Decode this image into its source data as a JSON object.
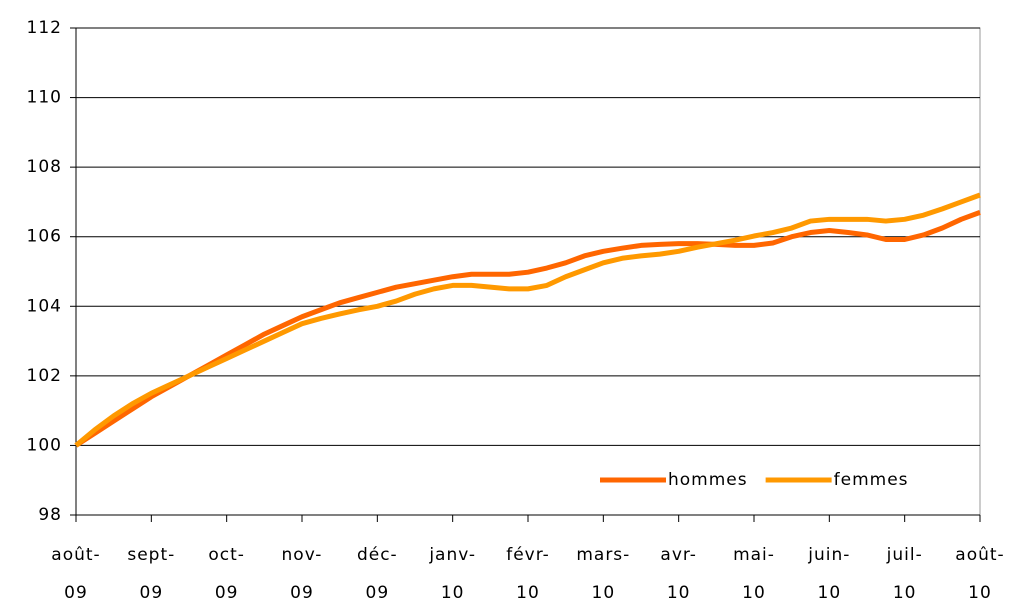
{
  "chart_data": {
    "type": "line",
    "categories": [
      "août-\n09",
      null,
      null,
      null,
      "sept-\n09",
      null,
      null,
      null,
      "oct-\n09",
      null,
      null,
      null,
      "nov-\n09",
      null,
      null,
      null,
      "déc-\n09",
      null,
      null,
      null,
      "janv-\n10",
      null,
      null,
      null,
      "févr-\n10",
      null,
      null,
      null,
      "mars-\n10",
      null,
      null,
      null,
      "avr-\n10",
      null,
      null,
      null,
      "mai-\n10",
      null,
      null,
      null,
      "juin-\n10",
      null,
      null,
      null,
      "juil-\n10",
      null,
      null,
      null,
      "août-\n10"
    ],
    "series": [
      {
        "name": "hommes",
        "color": "#ff6600",
        "values": [
          100,
          100.35,
          100.7,
          101.05,
          101.4,
          101.7,
          102.0,
          102.3,
          102.6,
          102.9,
          103.2,
          103.45,
          103.7,
          103.9,
          104.1,
          104.25,
          104.4,
          104.55,
          104.65,
          104.75,
          104.85,
          104.92,
          104.92,
          104.92,
          104.98,
          105.1,
          105.25,
          105.45,
          105.58,
          105.67,
          105.75,
          105.78,
          105.8,
          105.8,
          105.78,
          105.75,
          105.75,
          105.82,
          106.0,
          106.12,
          106.18,
          106.12,
          106.05,
          105.92,
          105.92,
          106.05,
          106.25,
          106.5,
          106.7
        ]
      },
      {
        "name": "femmes",
        "color": "#ff9900",
        "values": [
          100,
          100.45,
          100.85,
          101.2,
          101.5,
          101.75,
          102.0,
          102.25,
          102.5,
          102.75,
          103.0,
          103.25,
          103.5,
          103.65,
          103.78,
          103.9,
          104.0,
          104.15,
          104.35,
          104.5,
          104.6,
          104.6,
          104.55,
          104.5,
          104.5,
          104.6,
          104.85,
          105.05,
          105.25,
          105.38,
          105.45,
          105.5,
          105.58,
          105.7,
          105.8,
          105.9,
          106.02,
          106.12,
          106.25,
          106.45,
          106.5,
          106.5,
          106.5,
          106.45,
          106.5,
          106.62,
          106.8,
          107.0,
          107.2
        ]
      }
    ],
    "ylim": [
      98,
      112
    ],
    "yticks": [
      98,
      100,
      102,
      104,
      106,
      108,
      110,
      112
    ],
    "grid": true,
    "legend": "lower right"
  }
}
